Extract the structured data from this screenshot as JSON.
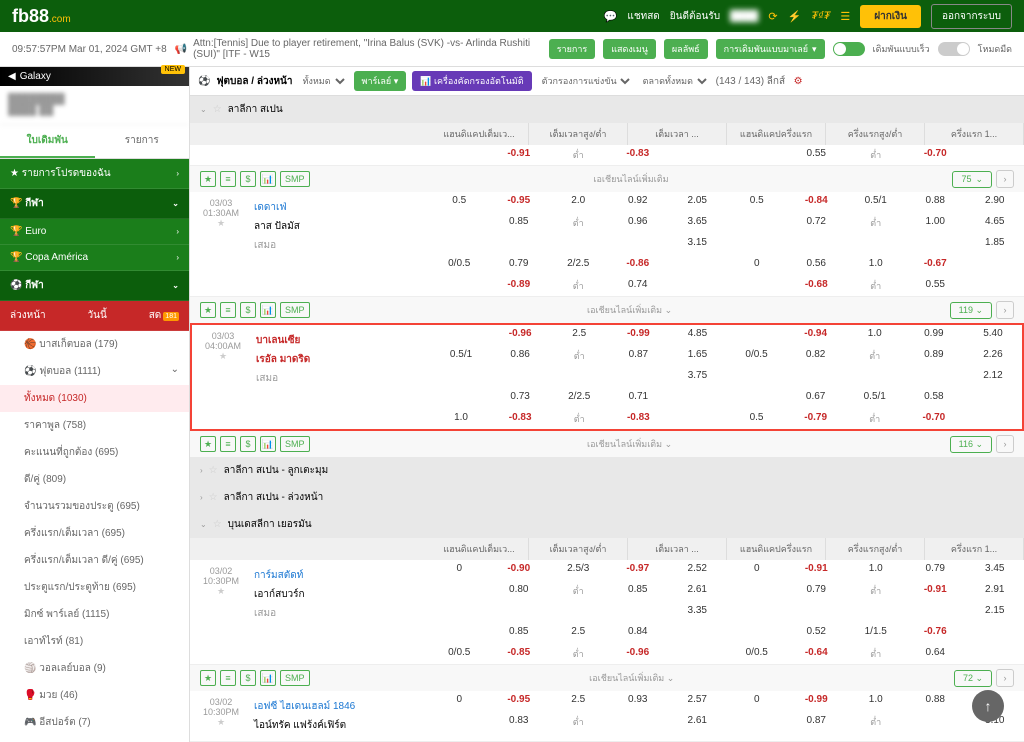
{
  "header": {
    "logo": "fb88",
    "logo_suffix": ".com",
    "chat": "แชทสด",
    "welcome": "ยินดีต้อนรับ",
    "deposit": "ฝากเงิน",
    "logout": "ออกจากระบบ"
  },
  "subheader": {
    "time": "09:57:57PM Mar 01, 2024 GMT +8",
    "announce": "Attn:[Tennis] Due to player retirement, \"Irina Balus (SVK) -vs- Arlinda Rushiti (SUI)\" [ITF - W15",
    "tag1": "รายการ",
    "tag2": "แสดงเมนู",
    "tag3": "ผลลัพธ์",
    "dropdown": "การเดิมพันแบบมาเลย์",
    "toggle1": "เดิมพันแบบเร็ว",
    "toggle2": "โหมดมืด"
  },
  "galaxy": "Galaxy",
  "filterbar": {
    "sport": "ฟุตบอล / ล่วงหน้า",
    "all": "ทั้งหมด",
    "parlay": "พาร์เลย์",
    "filter_btn": "เครื่องคัดกรองอัตโนมัติ",
    "sort1": "ตัวกรองการแข่งขัน",
    "sort2": "ตลาดทั้งหมด",
    "count": "(143 / 143) ลีกส์"
  },
  "sidebar": {
    "tab1": "ใบเดิมพัน",
    "tab2": "รายการ",
    "fav": "รายการโปรดของฉัน",
    "sport": "กีฬา",
    "euro": "Euro",
    "copa": "Copa América",
    "sport2": "กีฬา",
    "subtabs": {
      "live": "ล่วงหน้า",
      "today": "วันนี้",
      "early": "สด"
    },
    "basketball": "บาสเก็ตบอล (179)",
    "football": "ฟุตบอล (1111)",
    "sub_all": "ทั้งหมด (1030)",
    "sub_half": "ราคาพูล (758)",
    "sub_corner": "คะแนนที่ถูกต้อง (695)",
    "sub_oe": "ดี/คู่ (809)",
    "sub_total": "จำนวนรวมของประตู (695)",
    "sub_ht": "ครึ่งแรก/เต็มเวลา (695)",
    "sub_htft": "ครึ่งแรก/เต็มเวลา ดี/คู่ (695)",
    "sub_goal": "ประตูแรก/ประตูท้าย (695)",
    "sub_mix": "มิกซ์ พาร์เลย์ (1115)",
    "sub_out": "เอาท์ไรท์ (81)",
    "volleyball": "วอลเลย์บอล (9)",
    "boxing": "มวย (46)",
    "esport": "อีสปอร์ต (7)"
  },
  "leagues": {
    "laliga": "ลาลีกา สเปน",
    "laliga_cup": "ลาลีกา สเปน - ลูกเตะมุม",
    "laliga_early": "ลาลีกา สเปน - ล่วงหน้า",
    "bundesliga": "บุนเดสลีกา เยอรมัน"
  },
  "odds_headers": {
    "h1": "แฮนดิแคปเต็มเว...",
    "h2": "เต็มเวลาสูง/ต่ำ",
    "h3": "เต็มเวลา ...",
    "h4": "แฮนดิแคปครึ่งแรก",
    "h5": "ครึ่งแรกสูง/ต่ำ",
    "h6": "ครึ่งแรก 1..."
  },
  "matches": [
    {
      "date": "03/03",
      "time": "01:30AM",
      "home": "เดดาเฟ่",
      "away": "ลาส ปัลมัส",
      "draw": "เสมอ",
      "rows": [
        [
          "0.5",
          "-0.95",
          "2.0",
          "0.92",
          "2.05",
          "0.5",
          "-0.84",
          "0.5/1",
          "0.88",
          "2.90"
        ],
        [
          "",
          "0.85",
          "ต่ำ",
          "0.96",
          "3.65",
          "",
          "0.72",
          "ต่ำ",
          "1.00",
          "4.65"
        ],
        [
          "",
          "",
          "",
          "",
          "3.15",
          "",
          "",
          "",
          "",
          "1.85"
        ],
        [
          "0/0.5",
          "0.79",
          "2/2.5",
          "-0.86",
          "",
          "0",
          "0.56",
          "1.0",
          "-0.67",
          ""
        ],
        [
          "",
          "-0.89",
          "ต่ำ",
          "0.74",
          "",
          "",
          "-0.68",
          "ต่ำ",
          "0.55",
          ""
        ]
      ],
      "badge": "119"
    },
    {
      "date": "03/03",
      "time": "04:00AM",
      "highlighted": true,
      "home": "บาเลนเซีย",
      "away": "เรอัล มาดริด",
      "home_red": true,
      "away_red": true,
      "draw": "เสมอ",
      "rows": [
        [
          "",
          "-0.96",
          "2.5",
          "-0.99",
          "4.85",
          "",
          "-0.94",
          "1.0",
          "0.99",
          "5.40"
        ],
        [
          "0.5/1",
          "0.86",
          "ต่ำ",
          "0.87",
          "1.65",
          "0/0.5",
          "0.82",
          "ต่ำ",
          "0.89",
          "2.26"
        ],
        [
          "",
          "",
          "",
          "",
          "3.75",
          "",
          "",
          "",
          "",
          "2.12"
        ],
        [
          "",
          "0.73",
          "2/2.5",
          "0.71",
          "",
          "",
          "0.67",
          "0.5/1",
          "0.58",
          ""
        ],
        [
          "1.0",
          "-0.83",
          "ต่ำ",
          "-0.83",
          "",
          "0.5",
          "-0.79",
          "ต่ำ",
          "-0.70",
          ""
        ]
      ],
      "badge": "116"
    }
  ],
  "match3": {
    "date": "03/02",
    "time": "10:30PM",
    "home": "การ์มสตัดท์",
    "away": "เอาก์สบวร์ก",
    "draw": "เสมอ",
    "rows": [
      [
        "0",
        "-0.90",
        "2.5/3",
        "-0.97",
        "2.52",
        "0",
        "-0.91",
        "1.0",
        "0.79",
        "3.45"
      ],
      [
        "",
        "0.80",
        "ต่ำ",
        "0.85",
        "2.61",
        "",
        "0.79",
        "ต่ำ",
        "-0.91",
        "2.91"
      ],
      [
        "",
        "",
        "",
        "",
        "3.35",
        "",
        "",
        "",
        "",
        "2.15"
      ],
      [
        "",
        "0.85",
        "2.5",
        "0.84",
        "",
        "",
        "0.52",
        "1/1.5",
        "-0.76",
        ""
      ],
      [
        "0/0.5",
        "-0.85",
        "ต่ำ",
        "-0.96",
        "",
        "0/0.5",
        "-0.64",
        "ต่ำ",
        "0.64",
        ""
      ]
    ],
    "badge": "72"
  },
  "match4": {
    "date": "03/02",
    "time": "10:30PM",
    "home": "เอฟซี ไฮเดนเฮลม์ 1846",
    "away": "ไอน์ทรัค แฟร้งค์เฟิร์ต",
    "rows": [
      [
        "0",
        "-0.95",
        "2.5",
        "0.93",
        "2.57",
        "0",
        "-0.99",
        "1.0",
        "0.88",
        ""
      ],
      [
        "",
        "0.83",
        "ต่ำ",
        "",
        "2.61",
        "",
        "0.87",
        "ต่ำ",
        "",
        "3.10"
      ]
    ]
  },
  "footer": {
    "more": "เอเชียนไลน์เพิ่มเติม",
    "smp": "SMP",
    "badge75": "75"
  },
  "first_row": {
    "r1": [
      "",
      "-0.91",
      "ต่ำ",
      "-0.83",
      "",
      "",
      "0.55",
      "ต่ำ",
      "-0.70",
      ""
    ]
  }
}
